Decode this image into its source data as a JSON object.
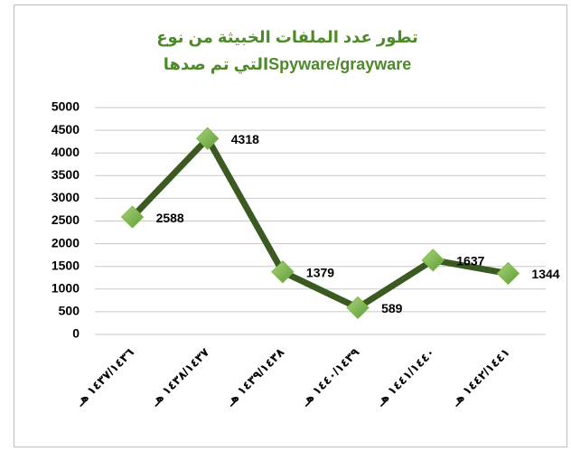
{
  "chart_data": {
    "type": "line",
    "title": [
      "تطور عدد الملفات الخبيثة من نوع",
      "Spyware/graywareالتي تم صدها"
    ],
    "categories": [
      "١٤٣٧/١٤٣٦ هـ",
      "١٤٣٨/١٤٣٧ هـ",
      "١٤٣٩/١٤٣٨ هـ",
      "١٤٤٠/١٤٣٩ هـ",
      "١٤٤١/١٤٤٠ هـ",
      "١٤٤٢/١٤٤١ هـ"
    ],
    "series": [
      {
        "name": "Spyware/grayware",
        "color": "#3a5a22",
        "marker_color": "#7cb84a",
        "values": [
          2588,
          4318,
          1379,
          589,
          1637,
          1344
        ]
      }
    ],
    "ylim": [
      0,
      5000
    ],
    "yticks": [
      0,
      500,
      1000,
      1500,
      2000,
      2500,
      3000,
      3500,
      4000,
      4500,
      5000
    ],
    "grid": true
  }
}
